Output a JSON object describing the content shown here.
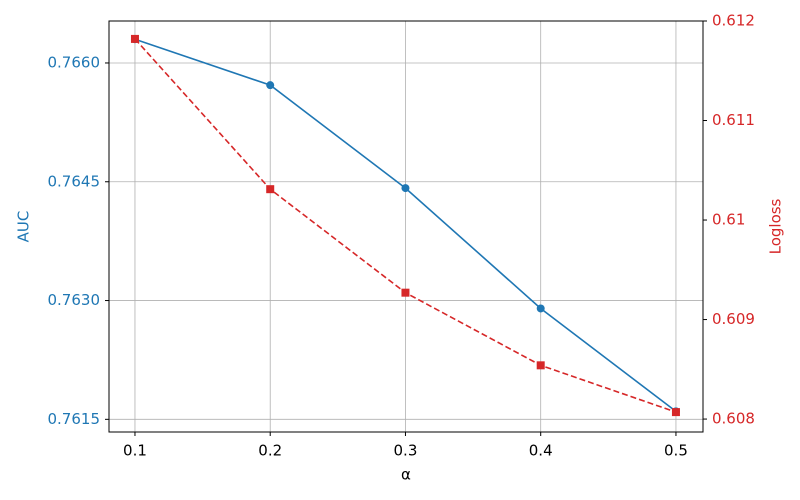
{
  "chart_data": {
    "type": "line",
    "x_label": "α",
    "y_label": "AUC",
    "y2_label": "Logloss",
    "x": [
      0.1,
      0.2,
      0.3,
      0.4,
      0.5
    ],
    "xlim": [
      0.0808,
      0.52
    ],
    "xticks": [
      0.1,
      0.2,
      0.3,
      0.4,
      0.5
    ],
    "ylim": [
      0.76134,
      0.76653
    ],
    "yticks": [
      {
        "value": 0.7615,
        "label": "0.7615"
      },
      {
        "value": 0.763,
        "label": "0.7630"
      },
      {
        "value": 0.7645,
        "label": "0.7645"
      },
      {
        "value": 0.766,
        "label": "0.7660"
      }
    ],
    "y2lim": [
      0.60787,
      0.612
    ],
    "y2ticks": [
      0.608,
      0.609,
      0.61,
      0.611,
      0.612
    ],
    "grid": true,
    "series": [
      {
        "color": "#1f77b4",
        "marker": "circle",
        "dash": "solid",
        "values": [
          0.7663,
          0.76572,
          0.76442,
          0.7629,
          0.7616
        ]
      },
      {
        "color": "#d62728",
        "marker": "square",
        "dash": "dashed",
        "axis": "y2",
        "values": [
          0.61182,
          0.61031,
          0.60927,
          0.60854,
          0.60807
        ]
      }
    ]
  }
}
